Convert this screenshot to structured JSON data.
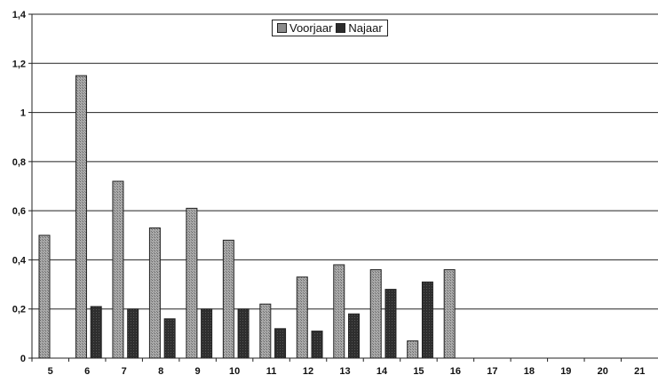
{
  "chart_data": {
    "type": "bar",
    "title": "",
    "xlabel": "",
    "ylabel": "",
    "categories": [
      "5",
      "6",
      "7",
      "8",
      "9",
      "10",
      "11",
      "12",
      "13",
      "14",
      "15",
      "16",
      "17",
      "18",
      "19",
      "20",
      "21"
    ],
    "series": [
      {
        "name": "Voorjaar",
        "color": "#8c8c8c",
        "values": [
          0.5,
          1.15,
          0.72,
          0.53,
          0.61,
          0.48,
          0.22,
          0.33,
          0.38,
          0.36,
          0.07,
          0.36,
          null,
          null,
          null,
          null,
          null
        ]
      },
      {
        "name": "Najaar",
        "color": "#2b2b2b",
        "values": [
          null,
          0.21,
          0.2,
          0.16,
          0.2,
          0.2,
          0.12,
          0.11,
          0.18,
          0.28,
          0.31,
          null,
          null,
          null,
          null,
          null,
          null
        ]
      }
    ],
    "ylim": [
      0,
      1.4
    ],
    "yticks": [
      "0",
      "0,2",
      "0,4",
      "0,6",
      "0,8",
      "1",
      "1,2",
      "1,4"
    ],
    "grid": true,
    "legend_position": "top-center"
  }
}
